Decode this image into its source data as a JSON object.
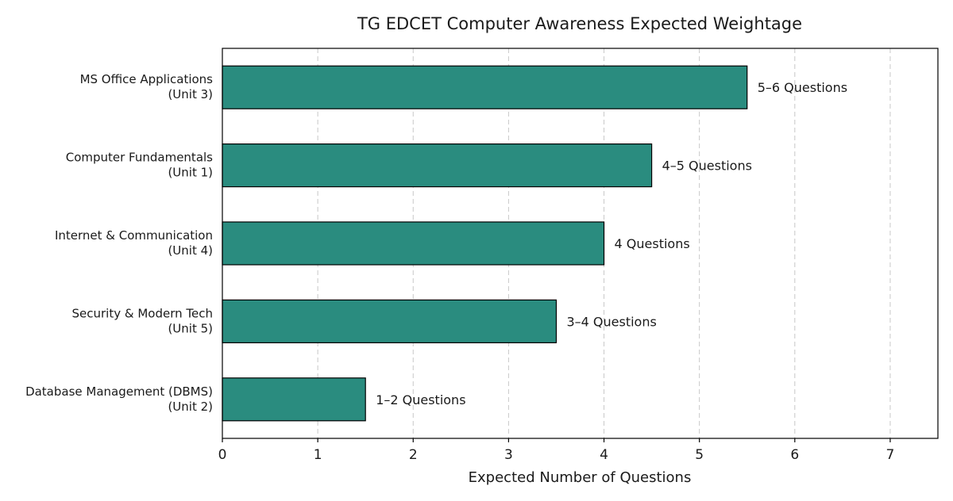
{
  "chart_data": {
    "type": "bar",
    "orientation": "horizontal",
    "title": "TG EDCET Computer Awareness Expected Weightage",
    "xlabel": "Expected Number of Questions",
    "ylabel": "",
    "xlim": [
      0,
      7.5
    ],
    "xticks": [
      0,
      1,
      2,
      3,
      4,
      5,
      6,
      7
    ],
    "grid": "x-dashed",
    "bar_color": "#2a8c7f",
    "categories": [
      [
        "MS Office Applications",
        "(Unit 3)"
      ],
      [
        "Computer Fundamentals",
        "(Unit 1)"
      ],
      [
        "Internet & Communication",
        "(Unit 4)"
      ],
      [
        "Security & Modern Tech",
        "(Unit 5)"
      ],
      [
        "Database Management (DBMS)",
        "(Unit 2)"
      ]
    ],
    "values": [
      5.5,
      4.5,
      4,
      3.5,
      1.5
    ],
    "data_labels": [
      "5–6 Questions",
      "4–5 Questions",
      "4 Questions",
      "3–4 Questions",
      "1–2 Questions"
    ]
  }
}
